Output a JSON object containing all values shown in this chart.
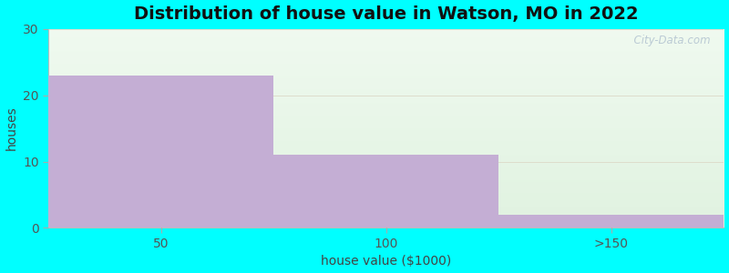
{
  "title": "Distribution of house value in Watson, MO in 2022",
  "xlabel": "house value ($1000)",
  "ylabel": "houses",
  "categories": [
    "50",
    "100",
    ">150"
  ],
  "values": [
    23,
    11,
    2
  ],
  "bar_color": "#c4aed4",
  "ylim": [
    0,
    30
  ],
  "yticks": [
    0,
    10,
    20,
    30
  ],
  "figure_bg": "#00FFFF",
  "title_fontsize": 14,
  "label_fontsize": 10,
  "tick_fontsize": 10,
  "watermark": "  City-Data.com",
  "n_bars": 3,
  "xlim": [
    0,
    3
  ]
}
